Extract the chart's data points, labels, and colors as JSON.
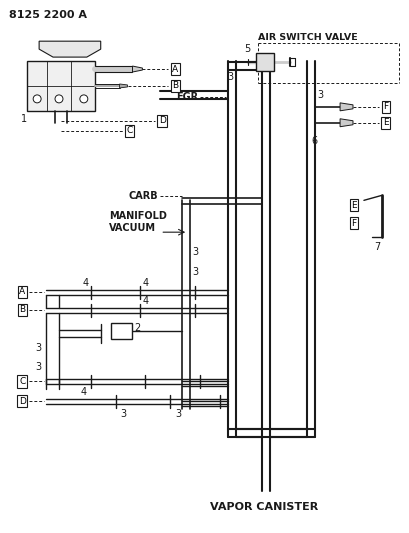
{
  "title": "8125 2200 A",
  "bg_color": "#ffffff",
  "lc": "#1a1a1a",
  "labels": {
    "air_switch_valve": "AIR SWITCH VALVE",
    "egr": "EGR",
    "carb": "CARB",
    "manifold_vacuum": "MANIFOLD\nVACUUM",
    "vapor_canister": "VAPOR CANISTER"
  }
}
